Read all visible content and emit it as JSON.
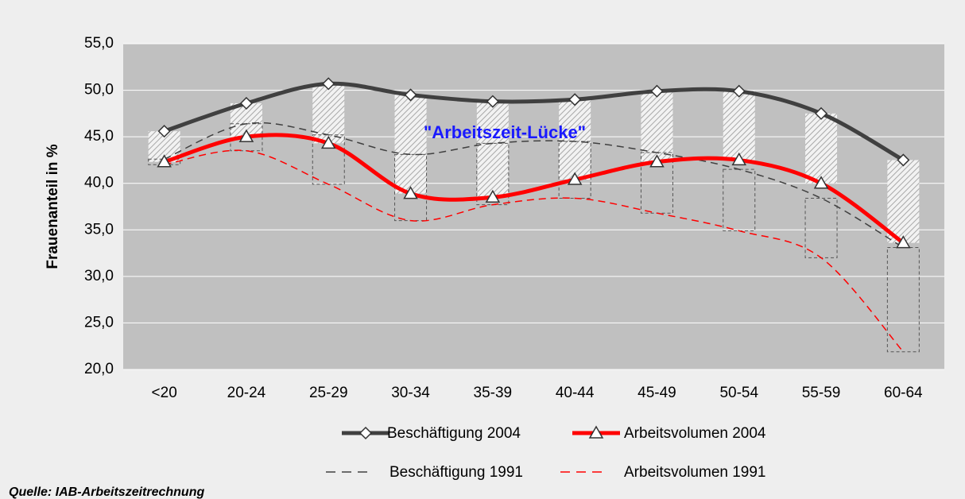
{
  "chart_data": {
    "type": "line",
    "y_label": "Frauenanteil in %",
    "annotation": "\"Arbeitszeit-Lücke\"",
    "source": "Quelle: IAB-Arbeitszeitrechnung",
    "categories": [
      "<20",
      "20-24",
      "25-29",
      "30-34",
      "35-39",
      "40-44",
      "45-49",
      "50-54",
      "55-59",
      "60-64"
    ],
    "series": [
      {
        "name": "Beschäftigung 2004",
        "color": "#404040",
        "style": "solid",
        "marker": "diamond",
        "values": [
          45.6,
          48.6,
          50.7,
          49.5,
          48.8,
          49.0,
          49.9,
          49.9,
          47.5,
          42.5
        ]
      },
      {
        "name": "Arbeitsvolumen 2004",
        "color": "#ff0000",
        "style": "solid",
        "marker": "triangle",
        "values": [
          42.3,
          45.0,
          44.3,
          38.9,
          38.5,
          40.4,
          42.3,
          42.5,
          40.0,
          33.6
        ]
      },
      {
        "name": "Beschäftigung 1991",
        "color": "#404040",
        "style": "dashed",
        "values": [
          42.6,
          46.4,
          45.2,
          43.1,
          44.3,
          44.5,
          43.3,
          41.5,
          38.4,
          33.1
        ]
      },
      {
        "name": "Arbeitsvolumen 1991",
        "color": "#ff0000",
        "style": "dashed",
        "values": [
          42.0,
          43.5,
          39.9,
          36.0,
          37.7,
          38.4,
          36.8,
          34.9,
          32.0,
          21.9
        ]
      }
    ],
    "ylim": [
      20,
      55
    ],
    "yticks": [
      {
        "value": 20,
        "label": "20,0"
      },
      {
        "value": 25,
        "label": "25,0"
      },
      {
        "value": 30,
        "label": "30,0"
      },
      {
        "value": 35,
        "label": "35,0"
      },
      {
        "value": 40,
        "label": "40,0"
      },
      {
        "value": 45,
        "label": "45,0"
      },
      {
        "value": 50,
        "label": "50,0"
      },
      {
        "value": 55,
        "label": "55,0"
      }
    ],
    "grid": true
  }
}
